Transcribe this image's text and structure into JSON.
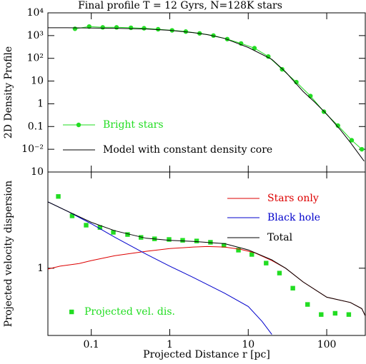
{
  "chart_data": [
    {
      "type": "line",
      "title": "Final profile T = 12 Gyrs, N=128K stars",
      "ylabel": "2D Density Profile",
      "xlog": true,
      "ylog": true,
      "xlim": [
        0.028,
        310
      ],
      "ylim": [
        0.001,
        10000
      ],
      "xticks": [
        0.1,
        1,
        10,
        100
      ],
      "yticks": [
        {
          "value": 10000,
          "label": "10⁴"
        },
        {
          "value": 1000,
          "label": "10³"
        },
        {
          "value": 100,
          "label": "10²"
        },
        10,
        1,
        0.1,
        {
          "value": 0.01,
          "label": "10⁻²"
        }
      ],
      "series": [
        {
          "name": "Bright stars",
          "color": "#22dd22",
          "marker": "circle",
          "line": true,
          "x": [
            0.062,
            0.094,
            0.14,
            0.21,
            0.32,
            0.47,
            0.71,
            1.07,
            1.6,
            2.4,
            3.6,
            5.4,
            8.1,
            12,
            18,
            27,
            41,
            62,
            92,
            139,
            208,
            280
          ],
          "values": [
            2000,
            2500,
            2300,
            2300,
            2200,
            2100,
            1900,
            1700,
            1500,
            1250,
            1000,
            700,
            450,
            280,
            120,
            33,
            9,
            2.2,
            0.45,
            0.11,
            0.025,
            0.01
          ]
        },
        {
          "name": "Model with constant density core",
          "color": "#000000",
          "marker": "none",
          "line": true,
          "x": [
            0.028,
            0.05,
            0.1,
            0.2,
            0.5,
            1,
            2,
            3,
            5,
            10,
            20,
            30,
            50,
            70,
            100,
            150,
            200,
            300
          ],
          "values": [
            2200,
            2200,
            2150,
            2100,
            1950,
            1700,
            1350,
            1100,
            750,
            300,
            90,
            25,
            3.5,
            1.2,
            0.35,
            0.07,
            0.02,
            0.003
          ]
        }
      ]
    },
    {
      "type": "line",
      "ylabel": "Projected velocity dispersion",
      "xlabel": "Projected Distance r [pc]",
      "xlog": true,
      "ylog": true,
      "xlim": [
        0.028,
        310
      ],
      "ylim": [
        0.2,
        10
      ],
      "xticks": [
        0.1,
        1,
        10,
        100
      ],
      "yticks": [
        1,
        10
      ],
      "series": [
        {
          "name": "Projected vel. dis.",
          "color": "#22dd22",
          "marker": "square",
          "line": false,
          "x": [
            0.038,
            0.057,
            0.086,
            0.129,
            0.191,
            0.29,
            0.43,
            0.64,
            0.98,
            1.46,
            2.2,
            3.3,
            4.9,
            7.5,
            11.1,
            16.9,
            25,
            37,
            57,
            85,
            128,
            191
          ],
          "values": [
            5.57,
            3.5,
            2.8,
            2.65,
            2.36,
            2.24,
            2.09,
            2.02,
            1.99,
            1.95,
            1.92,
            1.86,
            1.73,
            1.54,
            1.39,
            1.13,
            0.89,
            0.62,
            0.42,
            0.33,
            0.34,
            0.33
          ]
        },
        {
          "name": "Stars only",
          "color": "#dd0000",
          "marker": "none",
          "line": true,
          "x": [
            0.028,
            0.04,
            0.07,
            0.1,
            0.2,
            0.5,
            1,
            2,
            3,
            5,
            8,
            12,
            20,
            30,
            50,
            100,
            200,
            280,
            310
          ],
          "values": [
            0.98,
            1.05,
            1.12,
            1.2,
            1.35,
            1.5,
            1.6,
            1.66,
            1.68,
            1.66,
            1.57,
            1.45,
            1.2,
            1.0,
            0.72,
            0.5,
            0.44,
            0.38,
            0.32
          ]
        },
        {
          "name": "Black hole",
          "color": "#0000cc",
          "marker": "none",
          "line": true,
          "x": [
            0.028,
            0.05,
            0.1,
            0.2,
            0.5,
            1,
            2,
            5,
            10,
            15,
            20
          ],
          "values": [
            4.9,
            3.9,
            2.9,
            2.1,
            1.4,
            1.05,
            0.8,
            0.55,
            0.4,
            0.28,
            0.205
          ]
        },
        {
          "name": "Total",
          "color": "#000000",
          "marker": "none",
          "line": true,
          "x": [
            0.028,
            0.05,
            0.1,
            0.2,
            0.5,
            1,
            2,
            5,
            10,
            20,
            30,
            50,
            100,
            200,
            280,
            310
          ],
          "values": [
            4.9,
            3.9,
            3.0,
            2.45,
            2.05,
            1.95,
            1.9,
            1.8,
            1.55,
            1.22,
            1.0,
            0.72,
            0.5,
            0.44,
            0.38,
            0.32
          ]
        }
      ]
    }
  ]
}
